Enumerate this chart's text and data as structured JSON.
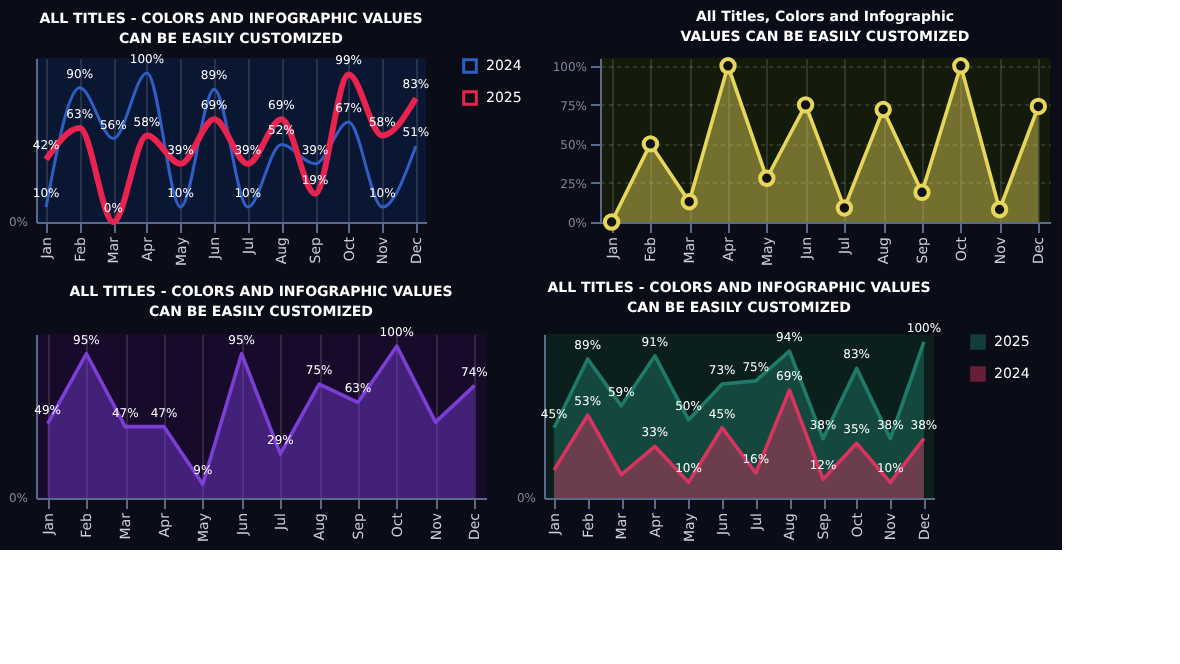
{
  "chart_data": [
    {
      "type": "line",
      "title": "ALL TITLES - COLORS AND INFOGRAPHIC VALUES",
      "subtitle": "CAN BE EASILY CUSTOMIZED",
      "categories": [
        "Jan",
        "Feb",
        "Mar",
        "Apr",
        "May",
        "Jun",
        "Jul",
        "Aug",
        "Sep",
        "Oct",
        "Nov",
        "Dec"
      ],
      "ylim": [
        0,
        110
      ],
      "annotations": [
        "0%"
      ],
      "grid": "x",
      "legend": "top right",
      "series": [
        {
          "name": "2024",
          "color": "#2f5fc4",
          "values": [
            10,
            90,
            56,
            100,
            10,
            89,
            10,
            52,
            39,
            67,
            10,
            51
          ],
          "value_labels": [
            "10%",
            "90%",
            "56%",
            "100%",
            "10%",
            "89%",
            "10%",
            "52%",
            "39%",
            "67%",
            "10%",
            "51%"
          ]
        },
        {
          "name": "2025",
          "color": "#e8234f",
          "values": [
            42,
            63,
            0,
            58,
            39,
            69,
            39,
            69,
            19,
            99,
            58,
            83
          ],
          "value_labels": [
            "42%",
            "63%",
            "0%",
            "58%",
            "39%",
            "69%",
            "39%",
            "69%",
            "19%",
            "99%",
            "58%",
            "83%"
          ]
        }
      ]
    },
    {
      "type": "area",
      "title": "All Titles, Colors and Infographic",
      "subtitle": "VALUES CAN BE EASILY CUSTOMIZED",
      "categories": [
        "Jan",
        "Feb",
        "Mar",
        "Apr",
        "May",
        "Jun",
        "Jul",
        "Aug",
        "Sep",
        "Oct",
        "Nov",
        "Dec"
      ],
      "ylim": [
        0,
        105
      ],
      "yticks": [
        {
          "value": 0,
          "label": "0%"
        },
        {
          "value": 25,
          "label": "25%"
        },
        {
          "value": 50,
          "label": "50%"
        },
        {
          "value": 75,
          "label": "75%"
        },
        {
          "value": 100,
          "label": "100%"
        }
      ],
      "grid": true,
      "marker": "circle",
      "series": [
        {
          "color": "#e6d65a",
          "values": [
            0,
            50,
            13,
            100,
            28,
            75,
            9,
            72,
            19,
            100,
            8,
            74
          ]
        }
      ]
    },
    {
      "type": "area",
      "title": "ALL TITLES - COLORS AND INFOGRAPHIC VALUES",
      "subtitle": "CAN BE EASILY CUSTOMIZED",
      "categories": [
        "Jan",
        "Feb",
        "Mar",
        "Apr",
        "May",
        "Jun",
        "Jul",
        "Aug",
        "Sep",
        "Oct",
        "Nov",
        "Dec"
      ],
      "ylim": [
        0,
        108
      ],
      "annotations": [
        "0%"
      ],
      "grid": "x",
      "series": [
        {
          "color": "#7b3fd6",
          "values": [
            49,
            95,
            47,
            47,
            9,
            95,
            29,
            75,
            63,
            100,
            50,
            74
          ],
          "value_labels": [
            "49%",
            "95%",
            "47%",
            "47%",
            "9%",
            "95%",
            "29%",
            "75%",
            "63%",
            "100%",
            null,
            "74%"
          ]
        }
      ]
    },
    {
      "type": "area",
      "title": "ALL TITLES - COLORS AND INFOGRAPHIC VALUES",
      "subtitle": "CAN BE EASILY CUSTOMIZED",
      "categories": [
        "Jan",
        "Feb",
        "Mar",
        "Apr",
        "May",
        "Jun",
        "Jul",
        "Aug",
        "Sep",
        "Oct",
        "Nov",
        "Dec"
      ],
      "ylim": [
        0,
        105
      ],
      "annotations": [
        "0%"
      ],
      "legend": "top right",
      "series": [
        {
          "name": "2025",
          "color": "#1f7a68",
          "values": [
            45,
            89,
            59,
            91,
            50,
            73,
            75,
            94,
            38,
            83,
            38,
            100
          ],
          "value_labels": [
            "45%",
            "89%",
            "59%",
            "91%",
            "50%",
            "73%",
            "75%",
            "94%",
            "38%",
            "83%",
            "38%",
            "100%"
          ]
        },
        {
          "name": "2024",
          "color": "#d8345f",
          "values": [
            18,
            53,
            15,
            33,
            10,
            45,
            16,
            69,
            12,
            35,
            10,
            38
          ],
          "value_labels": [
            null,
            "53%",
            null,
            "33%",
            "10%",
            "45%",
            "16%",
            "69%",
            "12%",
            "35%",
            "10%",
            "38%"
          ]
        }
      ]
    }
  ]
}
